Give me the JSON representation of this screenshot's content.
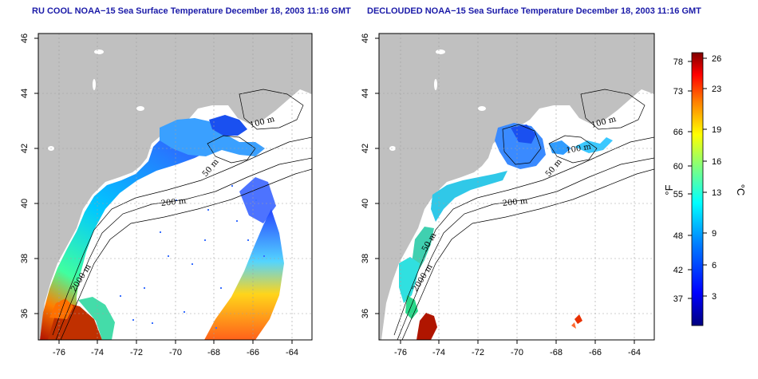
{
  "panels": [
    {
      "id": "raw",
      "title": "RU COOL NOAA−15 Sea Surface Temperature December 18, 2003 11:16 GMT",
      "contour_labels": [
        "100 m",
        "50 m",
        "200 m",
        "2000 m"
      ]
    },
    {
      "id": "declouded",
      "title": "DECLOUDED NOAA−15 Sea Surface Temperature December 18, 2003 11:16 GMT",
      "contour_labels": [
        "100 m",
        "100 m",
        "50 m",
        "200 m",
        "2000 m",
        "50 m"
      ]
    }
  ],
  "axes": {
    "lon_ticks": [
      "-76",
      "-74",
      "-72",
      "-70",
      "-68",
      "-66",
      "-64"
    ],
    "lat_ticks": [
      "36",
      "38",
      "40",
      "42",
      "44",
      "46"
    ],
    "xlim": [
      -77.2,
      -62.8
    ],
    "ylim": [
      35,
      46
    ],
    "grid": true
  },
  "colorbar": {
    "unit_f": "°F",
    "unit_c": "°C",
    "f_ticks": [
      "78",
      "73",
      "66",
      "60",
      "55",
      "48",
      "42",
      "37"
    ],
    "c_ticks": [
      "26",
      "23",
      "19",
      "16",
      "13",
      "9",
      "6",
      "3"
    ]
  },
  "colors": {
    "land": "#c0c0c0",
    "title_text": "#1a1aa8",
    "colormap": [
      "#00007f",
      "#0000ff",
      "#007fff",
      "#00ffff",
      "#7fff7f",
      "#ffff00",
      "#ff7f00",
      "#ff0000",
      "#7f0000"
    ]
  }
}
